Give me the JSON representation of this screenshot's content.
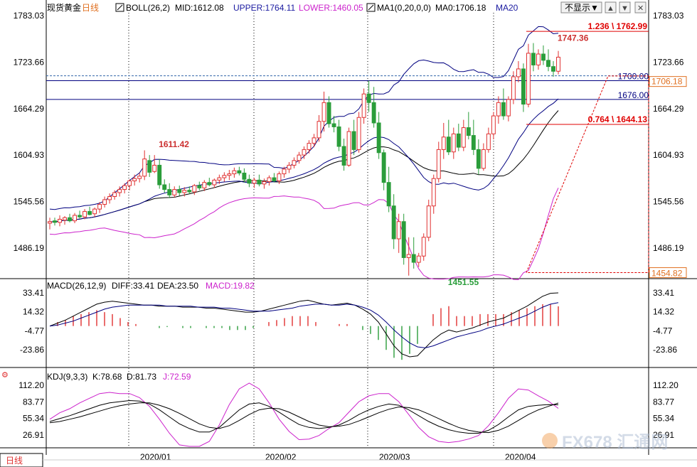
{
  "main_header": {
    "instrument": "现货黄金",
    "period": "日线",
    "boll_label": "BOLL(26,2)",
    "mid": "MID:1612.08",
    "upper": "UPPER:1764.11",
    "lower": "LOWER:1460.05",
    "ma_label": "MA1(0,20,0,0)",
    "ma0": "MA0:1706.18",
    "ma20": "MA20"
  },
  "toolbar": {
    "hide_button": "不显示▼",
    "chevron_up": "▲",
    "chevron_down": "▼",
    "close": "✕"
  },
  "macd_header": {
    "label": "MACD(26,12,9)",
    "diff": "DIFF:33.41",
    "dea": "DEA:23.50",
    "macd": "MACD:19.82"
  },
  "kdj_header": {
    "label": "KDJ(9,3,3)",
    "k": "K:78.68",
    "d": "D:81.73",
    "j": "J:72.59"
  },
  "period_tab": "日线",
  "watermark": "FX678 汇通网",
  "colors": {
    "up": "#e03030",
    "down": "#2a9d3a",
    "boll_mid": "#000000",
    "boll_band": "#000080",
    "lower_band": "#cc22cc",
    "grid": "#000000",
    "level": "#000080",
    "fib": "#e00000"
  },
  "chart_data": [
    {
      "type": "candlestick",
      "title": "现货黄金 日线",
      "x": [
        "2020/01",
        "2020/02",
        "2020/03",
        "2020/04"
      ],
      "ylim": [
        1440,
        1785
      ],
      "y_ticks": [
        1783.03,
        1723.66,
        1664.29,
        1604.93,
        1545.56,
        1486.19
      ],
      "price_labels": {
        "current": "1706.18",
        "low_marker": "1454.82"
      },
      "levels": [
        {
          "value": 1700.0,
          "label": "1700.00"
        },
        {
          "value": 1676.0,
          "label": "1676.00"
        }
      ],
      "fibonacci": [
        {
          "value": 1762.99,
          "label": "1.236 \\ 1762.99"
        },
        {
          "value": 1644.13,
          "label": "0.764 \\ 1644.13"
        }
      ],
      "annotations": [
        {
          "label": "1611.42",
          "value": 1611.42,
          "x_index": 21
        },
        {
          "label": "1451.55",
          "value": 1451.55,
          "x_index": 79
        },
        {
          "label": "1747.36",
          "value": 1747.36,
          "x_index": 101
        }
      ],
      "ohlc": [
        [
          1518,
          1525,
          1510,
          1520
        ],
        [
          1521,
          1525,
          1515,
          1519
        ],
        [
          1519,
          1528,
          1514,
          1523
        ],
        [
          1522,
          1527,
          1516,
          1525
        ],
        [
          1525,
          1530,
          1519,
          1521
        ],
        [
          1521,
          1531,
          1518,
          1528
        ],
        [
          1528,
          1534,
          1524,
          1526
        ],
        [
          1526,
          1536,
          1523,
          1533
        ],
        [
          1533,
          1539,
          1528,
          1529
        ],
        [
          1530,
          1538,
          1526,
          1536
        ],
        [
          1536,
          1545,
          1531,
          1542
        ],
        [
          1542,
          1552,
          1538,
          1548
        ],
        [
          1548,
          1556,
          1543,
          1552
        ],
        [
          1552,
          1560,
          1548,
          1557
        ],
        [
          1557,
          1565,
          1552,
          1561
        ],
        [
          1561,
          1569,
          1556,
          1566
        ],
        [
          1566,
          1574,
          1560,
          1572
        ],
        [
          1572,
          1580,
          1566,
          1575
        ],
        [
          1575,
          1582,
          1570,
          1578
        ],
        [
          1578,
          1611,
          1573,
          1600
        ],
        [
          1598,
          1605,
          1577,
          1583
        ],
        [
          1584,
          1605,
          1582,
          1592
        ],
        [
          1592,
          1600,
          1562,
          1567
        ],
        [
          1567,
          1574,
          1557,
          1561
        ],
        [
          1561,
          1569,
          1550,
          1554
        ],
        [
          1554,
          1565,
          1551,
          1561
        ],
        [
          1561,
          1566,
          1553,
          1557
        ],
        [
          1557,
          1564,
          1552,
          1560
        ],
        [
          1560,
          1565,
          1555,
          1558
        ],
        [
          1558,
          1568,
          1554,
          1566
        ],
        [
          1566,
          1571,
          1560,
          1563
        ],
        [
          1563,
          1573,
          1559,
          1570
        ],
        [
          1570,
          1576,
          1565,
          1567
        ],
        [
          1567,
          1575,
          1563,
          1573
        ],
        [
          1573,
          1580,
          1568,
          1576
        ],
        [
          1576,
          1583,
          1571,
          1579
        ],
        [
          1579,
          1586,
          1573,
          1581
        ],
        [
          1581,
          1589,
          1576,
          1585
        ],
        [
          1585,
          1590,
          1579,
          1582
        ],
        [
          1582,
          1588,
          1570,
          1574
        ],
        [
          1574,
          1580,
          1564,
          1569
        ],
        [
          1569,
          1576,
          1563,
          1573
        ],
        [
          1573,
          1580,
          1565,
          1568
        ],
        [
          1568,
          1575,
          1562,
          1571
        ],
        [
          1571,
          1579,
          1566,
          1576
        ],
        [
          1576,
          1582,
          1570,
          1572
        ],
        [
          1572,
          1584,
          1568,
          1581
        ],
        [
          1581,
          1590,
          1576,
          1587
        ],
        [
          1587,
          1596,
          1582,
          1592
        ],
        [
          1592,
          1602,
          1588,
          1598
        ],
        [
          1598,
          1609,
          1594,
          1605
        ],
        [
          1605,
          1616,
          1600,
          1612
        ],
        [
          1612,
          1624,
          1607,
          1620
        ],
        [
          1620,
          1632,
          1615,
          1627
        ],
        [
          1627,
          1656,
          1622,
          1648
        ],
        [
          1648,
          1686,
          1635,
          1672
        ],
        [
          1672,
          1680,
          1640,
          1645
        ],
        [
          1645,
          1655,
          1634,
          1641
        ],
        [
          1641,
          1650,
          1610,
          1616
        ],
        [
          1616,
          1626,
          1585,
          1592
        ],
        [
          1592,
          1640,
          1590,
          1635
        ],
        [
          1635,
          1650,
          1605,
          1612
        ],
        [
          1612,
          1660,
          1608,
          1653
        ],
        [
          1653,
          1690,
          1645,
          1683
        ],
        [
          1683,
          1700,
          1660,
          1672
        ],
        [
          1672,
          1692,
          1640,
          1646
        ],
        [
          1646,
          1660,
          1600,
          1608
        ],
        [
          1608,
          1612,
          1560,
          1570
        ],
        [
          1570,
          1590,
          1532,
          1540
        ],
        [
          1540,
          1555,
          1485,
          1498
        ],
        [
          1498,
          1530,
          1480,
          1520
        ],
        [
          1520,
          1530,
          1465,
          1474
        ],
        [
          1474,
          1500,
          1451,
          1478
        ],
        [
          1478,
          1500,
          1460,
          1468
        ],
        [
          1468,
          1480,
          1462,
          1476
        ],
        [
          1476,
          1505,
          1470,
          1500
        ],
        [
          1500,
          1548,
          1495,
          1540
        ],
        [
          1540,
          1580,
          1530,
          1575
        ],
        [
          1575,
          1622,
          1570,
          1612
        ],
        [
          1612,
          1646,
          1600,
          1628
        ],
        [
          1628,
          1650,
          1605,
          1609
        ],
        [
          1609,
          1640,
          1600,
          1632
        ],
        [
          1632,
          1645,
          1610,
          1615
        ],
        [
          1615,
          1650,
          1610,
          1640
        ],
        [
          1640,
          1660,
          1625,
          1630
        ],
        [
          1630,
          1650,
          1605,
          1612
        ],
        [
          1612,
          1625,
          1580,
          1588
        ],
        [
          1588,
          1620,
          1585,
          1612
        ],
        [
          1612,
          1640,
          1608,
          1632
        ],
        [
          1632,
          1660,
          1625,
          1655
        ],
        [
          1655,
          1680,
          1645,
          1672
        ],
        [
          1672,
          1690,
          1650,
          1655
        ],
        [
          1655,
          1680,
          1648,
          1676
        ],
        [
          1676,
          1712,
          1670,
          1705
        ],
        [
          1705,
          1725,
          1698,
          1715
        ],
        [
          1715,
          1722,
          1660,
          1670
        ],
        [
          1670,
          1747,
          1666,
          1735
        ],
        [
          1735,
          1748,
          1712,
          1720
        ],
        [
          1720,
          1740,
          1714,
          1734
        ],
        [
          1734,
          1745,
          1720,
          1726
        ],
        [
          1726,
          1740,
          1712,
          1718
        ],
        [
          1718,
          1725,
          1705,
          1712
        ],
        [
          1712,
          1738,
          1708,
          1730
        ]
      ]
    },
    {
      "type": "macd",
      "title": "MACD(26,12,9)",
      "y_ticks": [
        33.41,
        14.32,
        -4.77,
        -23.86
      ],
      "series": [
        {
          "name": "DIFF",
          "values": [
            0,
            3,
            6,
            10,
            14,
            18,
            22,
            24,
            25,
            24,
            23,
            22,
            21,
            21,
            20,
            20,
            20,
            19,
            19,
            19,
            18,
            18,
            17,
            16,
            15,
            14,
            14,
            15,
            17,
            19,
            21,
            23,
            25,
            26,
            24,
            22,
            21,
            22,
            23,
            21,
            17,
            12,
            4,
            -8,
            -20,
            -28,
            -31,
            -30,
            -22,
            -14,
            -8,
            -4,
            -6,
            -4,
            -2,
            1,
            4,
            6,
            8,
            12,
            16,
            20,
            25,
            30,
            33,
            33.41
          ]
        },
        {
          "name": "DEA",
          "values": [
            0,
            1,
            3,
            5,
            8,
            11,
            14,
            17,
            19,
            20,
            21,
            21,
            21,
            21,
            21,
            20,
            20,
            20,
            20,
            19,
            19,
            19,
            18,
            18,
            17,
            16,
            15,
            15,
            15,
            16,
            17,
            18,
            20,
            21,
            22,
            22,
            21,
            21,
            22,
            21,
            19,
            16,
            11,
            4,
            -4,
            -11,
            -17,
            -21,
            -22,
            -20,
            -17,
            -14,
            -11,
            -9,
            -7,
            -5,
            -2,
            0,
            2,
            5,
            8,
            11,
            15,
            19,
            22,
            23.5
          ]
        },
        {
          "name": "MACD",
          "values": [
            0,
            4,
            6,
            10,
            12,
            14,
            16,
            14,
            12,
            8,
            4,
            2,
            0,
            0,
            -2,
            -1,
            0,
            -2,
            -2,
            0,
            -2,
            -2,
            -2,
            -4,
            -4,
            -4,
            -2,
            0,
            4,
            6,
            8,
            10,
            10,
            10,
            4,
            0,
            0,
            2,
            2,
            0,
            -4,
            -8,
            -14,
            -24,
            -32,
            -34,
            -28,
            -18,
            0,
            12,
            18,
            20,
            10,
            10,
            10,
            12,
            12,
            12,
            12,
            14,
            16,
            18,
            20,
            22,
            22,
            19.82
          ]
        }
      ]
    },
    {
      "type": "kdj",
      "title": "KDJ(9,3,3)",
      "y_ticks": [
        112.2,
        83.77,
        55.34,
        26.91
      ],
      "series": [
        {
          "name": "K",
          "values": [
            50,
            55,
            60,
            66,
            72,
            78,
            82,
            84,
            86,
            85,
            80,
            70,
            58,
            46,
            38,
            32,
            32,
            40,
            55,
            70,
            80,
            82,
            76,
            66,
            55,
            45,
            40,
            38,
            40,
            44,
            52,
            62,
            70,
            76,
            80,
            78,
            70,
            60,
            50,
            42,
            36,
            32,
            30,
            30,
            35,
            45,
            58,
            70,
            76,
            78,
            79,
            78.68
          ]
        },
        {
          "name": "D",
          "values": [
            48,
            50,
            54,
            58,
            63,
            68,
            73,
            77,
            80,
            82,
            82,
            78,
            72,
            64,
            55,
            46,
            40,
            38,
            43,
            52,
            62,
            70,
            73,
            72,
            66,
            58,
            50,
            44,
            41,
            42,
            45,
            51,
            58,
            65,
            71,
            75,
            74,
            70,
            63,
            55,
            47,
            40,
            35,
            32,
            31,
            35,
            42,
            52,
            62,
            70,
            76,
            81.73
          ]
        },
        {
          "name": "J",
          "values": [
            54,
            65,
            72,
            82,
            90,
            98,
            100,
            98,
            98,
            91,
            76,
            54,
            30,
            10,
            4,
            4,
            16,
            44,
            79,
            106,
            116,
            106,
            82,
            54,
            33,
            19,
            20,
            26,
            38,
            48,
            66,
            84,
            94,
            98,
            98,
            84,
            62,
            40,
            24,
            16,
            14,
            16,
            20,
            26,
            43,
            65,
            90,
            106,
            104,
            94,
            85,
            72.59
          ]
        }
      ]
    }
  ]
}
